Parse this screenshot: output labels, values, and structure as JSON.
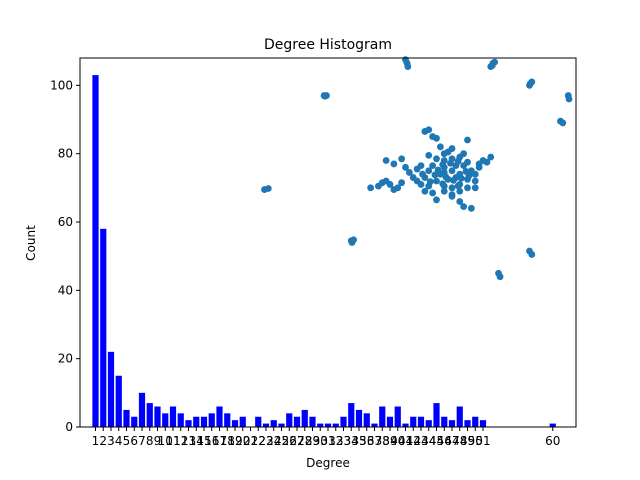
{
  "chart_data": {
    "type": "bar",
    "title": "Degree Histogram",
    "xlabel": "Degree",
    "ylabel": "Count",
    "ylim": [
      0,
      108
    ],
    "xlim": [
      -1,
      63
    ],
    "grid": false,
    "bar_color": "#0000ff",
    "point_color": "#1f77b4",
    "x_tick_labels": [
      "1",
      "2",
      "3",
      "4",
      "5",
      "6",
      "7",
      "8",
      "9",
      "10",
      "11",
      "12",
      "13",
      "14",
      "15",
      "16",
      "17",
      "18",
      "19",
      "20",
      "21",
      "22",
      "23",
      "24",
      "25",
      "26",
      "27",
      "28",
      "29",
      "30",
      "31",
      "32",
      "33",
      "34",
      "35",
      "36",
      "37",
      "38",
      "39",
      "40",
      "41",
      "42",
      "43",
      "44",
      "45",
      "46",
      "47",
      "48",
      "49",
      "50",
      "51",
      "60"
    ],
    "y_ticks": [
      0,
      20,
      40,
      60,
      80,
      100
    ],
    "bars": {
      "x": [
        1,
        2,
        3,
        4,
        5,
        6,
        7,
        8,
        9,
        10,
        11,
        12,
        13,
        14,
        15,
        16,
        17,
        18,
        19,
        20,
        22,
        23,
        24,
        25,
        26,
        27,
        28,
        29,
        30,
        31,
        32,
        33,
        34,
        35,
        36,
        37,
        38,
        39,
        40,
        41,
        42,
        43,
        44,
        45,
        46,
        47,
        48,
        49,
        50,
        51,
        60
      ],
      "values": [
        103,
        58,
        22,
        15,
        5,
        3,
        10,
        7,
        6,
        4,
        6,
        4,
        2,
        3,
        3,
        4,
        6,
        4,
        2,
        3,
        3,
        1,
        2,
        1,
        4,
        3,
        5,
        3,
        1,
        1,
        1,
        3,
        7,
        5,
        4,
        1,
        6,
        3,
        6,
        1,
        3,
        3,
        2,
        7,
        3,
        2,
        6,
        2,
        3,
        2,
        1
      ]
    },
    "scatter_overlay": {
      "note_free": true,
      "points": [
        [
          41.0,
          107.5
        ],
        [
          41.2,
          106.5
        ],
        [
          41.3,
          105.5
        ],
        [
          52.0,
          105.5
        ],
        [
          52.3,
          106.5
        ],
        [
          52.5,
          106.8
        ],
        [
          52.2,
          105.8
        ],
        [
          57.0,
          100.0
        ],
        [
          57.3,
          101.0
        ],
        [
          57.1,
          100.5
        ],
        [
          62.0,
          97.0
        ],
        [
          62.1,
          96.0
        ],
        [
          30.5,
          97.0
        ],
        [
          30.8,
          97.0
        ],
        [
          30.6,
          96.8
        ],
        [
          61.0,
          89.5
        ],
        [
          61.3,
          89.0
        ],
        [
          22.8,
          69.5
        ],
        [
          23.3,
          69.8
        ],
        [
          34.0,
          54.5
        ],
        [
          34.3,
          54.8
        ],
        [
          34.1,
          54.0
        ],
        [
          57.0,
          51.5
        ],
        [
          57.3,
          50.5
        ],
        [
          53.0,
          45.0
        ],
        [
          53.2,
          44.0
        ],
        [
          36.5,
          70.0
        ],
        [
          37.5,
          70.5
        ],
        [
          38.0,
          71.5
        ],
        [
          38.5,
          72.0
        ],
        [
          39.0,
          71.0
        ],
        [
          39.5,
          69.5
        ],
        [
          40.0,
          70.0
        ],
        [
          40.5,
          71.5
        ],
        [
          38.5,
          78.0
        ],
        [
          39.5,
          77.0
        ],
        [
          40.5,
          78.5
        ],
        [
          41.0,
          76.0
        ],
        [
          41.5,
          74.5
        ],
        [
          42.0,
          73.0
        ],
        [
          42.5,
          72.0
        ],
        [
          43.0,
          71.0
        ],
        [
          43.5,
          69.0
        ],
        [
          44.0,
          70.5
        ],
        [
          44.5,
          68.5
        ],
        [
          45.0,
          66.5
        ],
        [
          46.0,
          69.0
        ],
        [
          47.0,
          68.0
        ],
        [
          48.0,
          66.0
        ],
        [
          48.5,
          64.5
        ],
        [
          49.5,
          64.0
        ],
        [
          50.0,
          70.0
        ],
        [
          51.0,
          78.0
        ],
        [
          52.0,
          79.0
        ],
        [
          50.5,
          77.0
        ],
        [
          51.5,
          77.5
        ],
        [
          43.5,
          86.5
        ],
        [
          44.0,
          87.0
        ],
        [
          44.5,
          85.0
        ],
        [
          45.0,
          84.5
        ],
        [
          49.0,
          84.0
        ],
        [
          46.0,
          80.0
        ],
        [
          45.5,
          82.0
        ],
        [
          47.0,
          81.5
        ],
        [
          46.0,
          76.0
        ],
        [
          47.0,
          75.0
        ],
        [
          48.0,
          74.0
        ],
        [
          48.5,
          76.5
        ],
        [
          47.5,
          73.0
        ],
        [
          46.5,
          72.5
        ],
        [
          45.5,
          74.0
        ],
        [
          44.5,
          76.5
        ],
        [
          45.0,
          72.0
        ],
        [
          46.0,
          70.5
        ],
        [
          47.0,
          70.0
        ],
        [
          48.0,
          71.0
        ],
        [
          49.0,
          72.5
        ],
        [
          49.5,
          75.0
        ],
        [
          49.0,
          77.5
        ],
        [
          48.0,
          79.0
        ],
        [
          47.0,
          78.5
        ],
        [
          46.0,
          78.0
        ],
        [
          45.0,
          78.5
        ],
        [
          44.0,
          75.0
        ],
        [
          43.5,
          73.0
        ],
        [
          44.0,
          79.5
        ],
        [
          46.5,
          80.5
        ],
        [
          48.5,
          80.0
        ],
        [
          50.0,
          74.0
        ],
        [
          50.5,
          76.0
        ],
        [
          50.0,
          72.0
        ],
        [
          49.0,
          70.0
        ],
        [
          48.0,
          69.0
        ],
        [
          47.0,
          67.5
        ],
        [
          46.0,
          74.5
        ],
        [
          47.5,
          76.5
        ],
        [
          46.8,
          77.2
        ],
        [
          47.8,
          77.8
        ],
        [
          45.8,
          76.8
        ],
        [
          45.2,
          75.2
        ],
        [
          44.8,
          73.8
        ],
        [
          46.2,
          73.2
        ],
        [
          47.2,
          72.2
        ],
        [
          48.2,
          72.8
        ],
        [
          48.8,
          74.8
        ],
        [
          49.2,
          73.6
        ],
        [
          43.0,
          76.5
        ],
        [
          42.5,
          75.5
        ],
        [
          43.2,
          74.0
        ],
        [
          44.2,
          71.8
        ],
        [
          45.8,
          71.2
        ],
        [
          47.8,
          70.6
        ]
      ]
    }
  }
}
